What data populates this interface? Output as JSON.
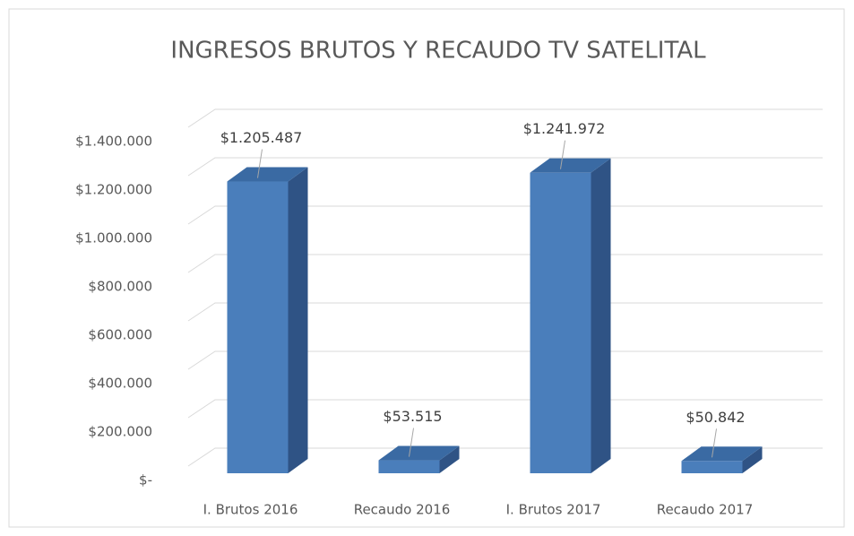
{
  "chart_data": {
    "type": "bar3d",
    "title": "INGRESOS BRUTOS Y RECAUDO TV SATELITAL",
    "categories": [
      "I. Brutos 2016",
      "Recaudo 2016",
      "I. Brutos 2017",
      "Recaudo 2017"
    ],
    "values": [
      1205487,
      53515,
      1241972,
      50842
    ],
    "value_labels": [
      "$1.205.487",
      "$53.515",
      "$1.241.972",
      "$50.842"
    ],
    "color": "#4a7ebb",
    "ylim": [
      0,
      1400000
    ],
    "yticks": [
      {
        "value": 0,
        "label": "$-"
      },
      {
        "value": 200000,
        "label": "$200.000"
      },
      {
        "value": 400000,
        "label": "$400.000"
      },
      {
        "value": 600000,
        "label": "$600.000"
      },
      {
        "value": 800000,
        "label": "$800.000"
      },
      {
        "value": 1000000,
        "label": "$1.000.000"
      },
      {
        "value": 1200000,
        "label": "$1.200.000"
      },
      {
        "value": 1400000,
        "label": "$1.400.000"
      }
    ],
    "grid": true
  }
}
